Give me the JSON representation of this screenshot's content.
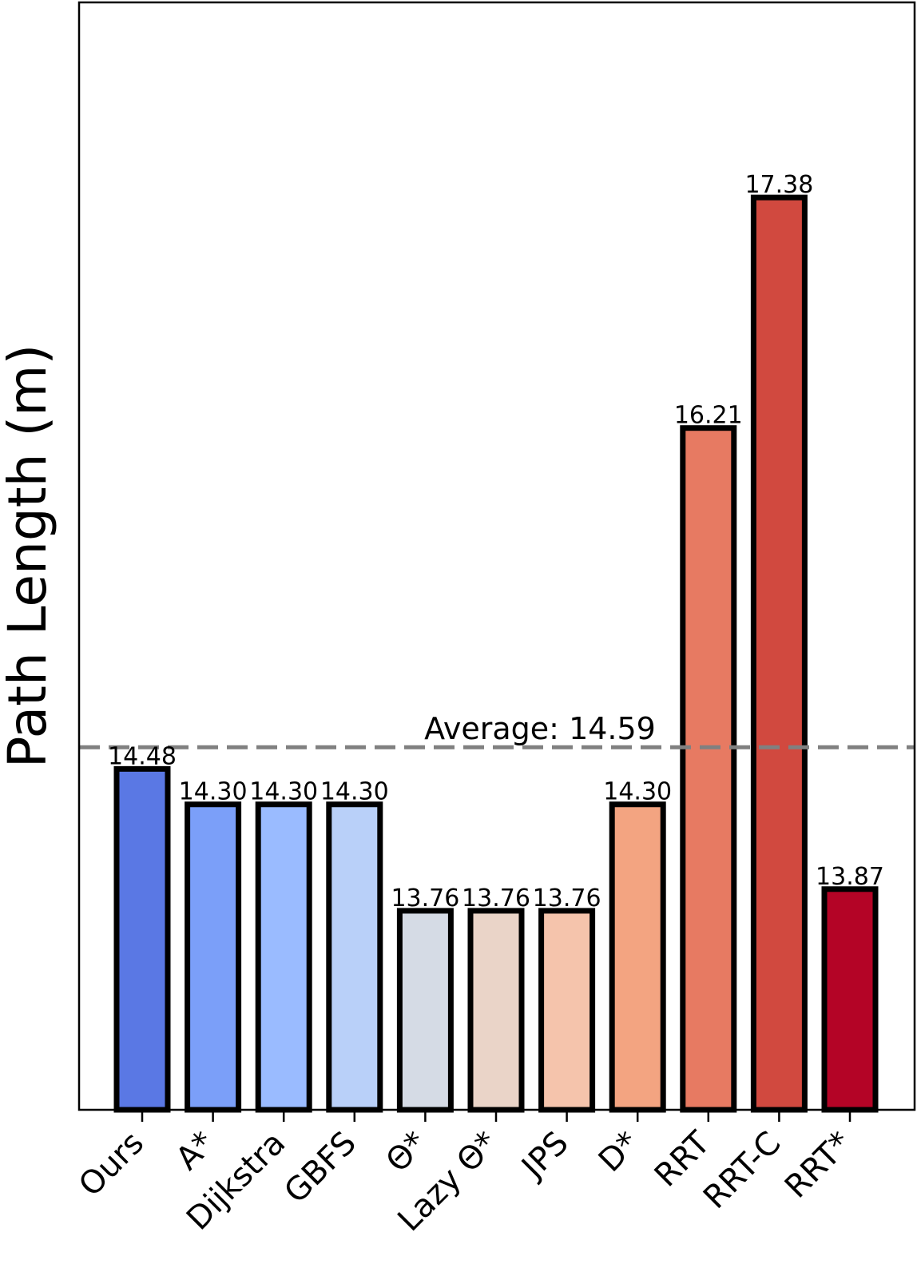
{
  "chart_data": {
    "type": "bar",
    "title": "",
    "xlabel": "",
    "ylabel": "Path Length (m)",
    "categories": [
      "Ours",
      "A*",
      "Dijkstra",
      "GBFS",
      "Θ*",
      "Lazy Θ*",
      "JPS",
      "D*",
      "RRT",
      "RRT-C",
      "RRT*"
    ],
    "values": [
      14.48,
      14.3,
      14.3,
      14.3,
      13.76,
      13.76,
      13.76,
      14.3,
      16.21,
      17.38,
      13.87
    ],
    "value_labels": [
      "14.48",
      "14.30",
      "14.30",
      "14.30",
      "13.76",
      "13.76",
      "13.76",
      "14.30",
      "16.21",
      "17.38",
      "13.87"
    ],
    "colors": [
      "#5a78e4",
      "#7b9ff9",
      "#9abbff",
      "#b9d0f9",
      "#d5dbe5",
      "#ead4c8",
      "#f5c4ac",
      "#f3a481",
      "#e77a62",
      "#d1493f",
      "#b40426"
    ],
    "bar_edge_color": "#000000",
    "ylim": [
      12.75,
      18.37
    ],
    "y_ticks_shown": false,
    "grid": false,
    "average": {
      "value": 14.59,
      "label": "Average: 14.59",
      "color": "#808080",
      "style": "dashed"
    }
  }
}
